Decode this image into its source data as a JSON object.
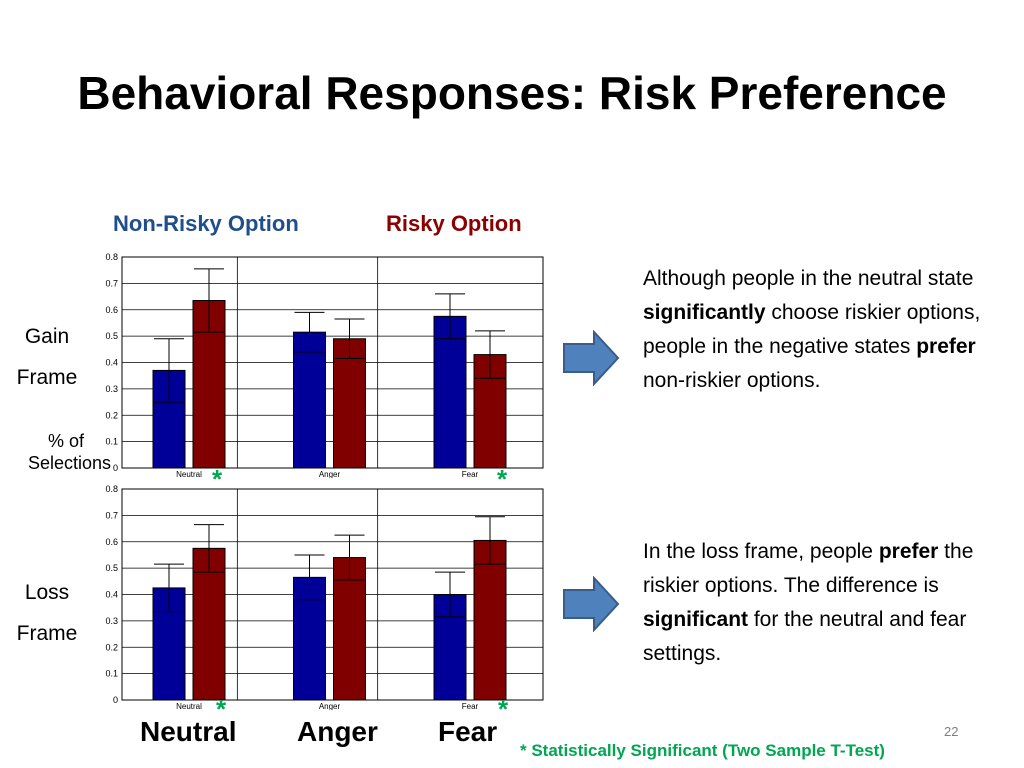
{
  "slide": {
    "title": "Behavioral Responses: Risk Preference",
    "legend": {
      "non_risky": "Non-Risky Option",
      "risky": "Risky Option"
    },
    "row_labels": {
      "gain_line1": "Gain",
      "gain_line2": "Frame",
      "loss_line1": "Loss",
      "loss_line2": "Frame"
    },
    "ylabel_line1": "% of",
    "ylabel_line2": "Selections",
    "categories": [
      "Neutral",
      "Anger",
      "Fear"
    ],
    "star": "*",
    "note_gain": {
      "p1": "Although people in the neutral state ",
      "b1": "significantly",
      "p2": " choose riskier options, people in the negative states ",
      "b2": "prefer",
      "p3": " non-riskier options."
    },
    "note_loss": {
      "p1": "In the loss frame, people ",
      "b1": "prefer",
      "p2": " the riskier options. The difference is ",
      "b2": "significant",
      "p3": " for the neutral and fear settings."
    },
    "footnote": "* Statistically Significant (Two Sample T-Test)",
    "page_number": "22",
    "colors": {
      "non_risky": "#000099",
      "risky": "#800000",
      "star": "#00a651",
      "arrow": "#4f81bd"
    }
  },
  "chart_data": [
    {
      "type": "bar",
      "name": "Gain Frame",
      "categories": [
        "Neutral",
        "Anger",
        "Fear"
      ],
      "series": [
        {
          "name": "Non-Risky Option",
          "values": [
            0.37,
            0.515,
            0.575
          ],
          "error": [
            0.12,
            0.075,
            0.085
          ]
        },
        {
          "name": "Risky Option",
          "values": [
            0.635,
            0.49,
            0.43
          ],
          "error": [
            0.12,
            0.075,
            0.09
          ]
        }
      ],
      "yticks": [
        "0",
        "0.1",
        "0.2",
        "0.3",
        "0.4",
        "0.5",
        "0.6",
        "0.7",
        "0.8"
      ],
      "ylim": [
        0,
        0.8
      ],
      "grid": true,
      "significant": [
        "Neutral",
        "Fear"
      ]
    },
    {
      "type": "bar",
      "name": "Loss Frame",
      "categories": [
        "Neutral",
        "Anger",
        "Fear"
      ],
      "series": [
        {
          "name": "Non-Risky Option",
          "values": [
            0.425,
            0.465,
            0.4
          ],
          "error": [
            0.09,
            0.085,
            0.085
          ]
        },
        {
          "name": "Risky Option",
          "values": [
            0.575,
            0.54,
            0.605
          ],
          "error": [
            0.09,
            0.085,
            0.09
          ]
        }
      ],
      "yticks": [
        "0",
        "0.1",
        "0.2",
        "0.3",
        "0.4",
        "0.5",
        "0.6",
        "0.7",
        "0.8"
      ],
      "ylim": [
        0,
        0.8
      ],
      "grid": true,
      "significant": [
        "Neutral",
        "Fear"
      ]
    }
  ]
}
